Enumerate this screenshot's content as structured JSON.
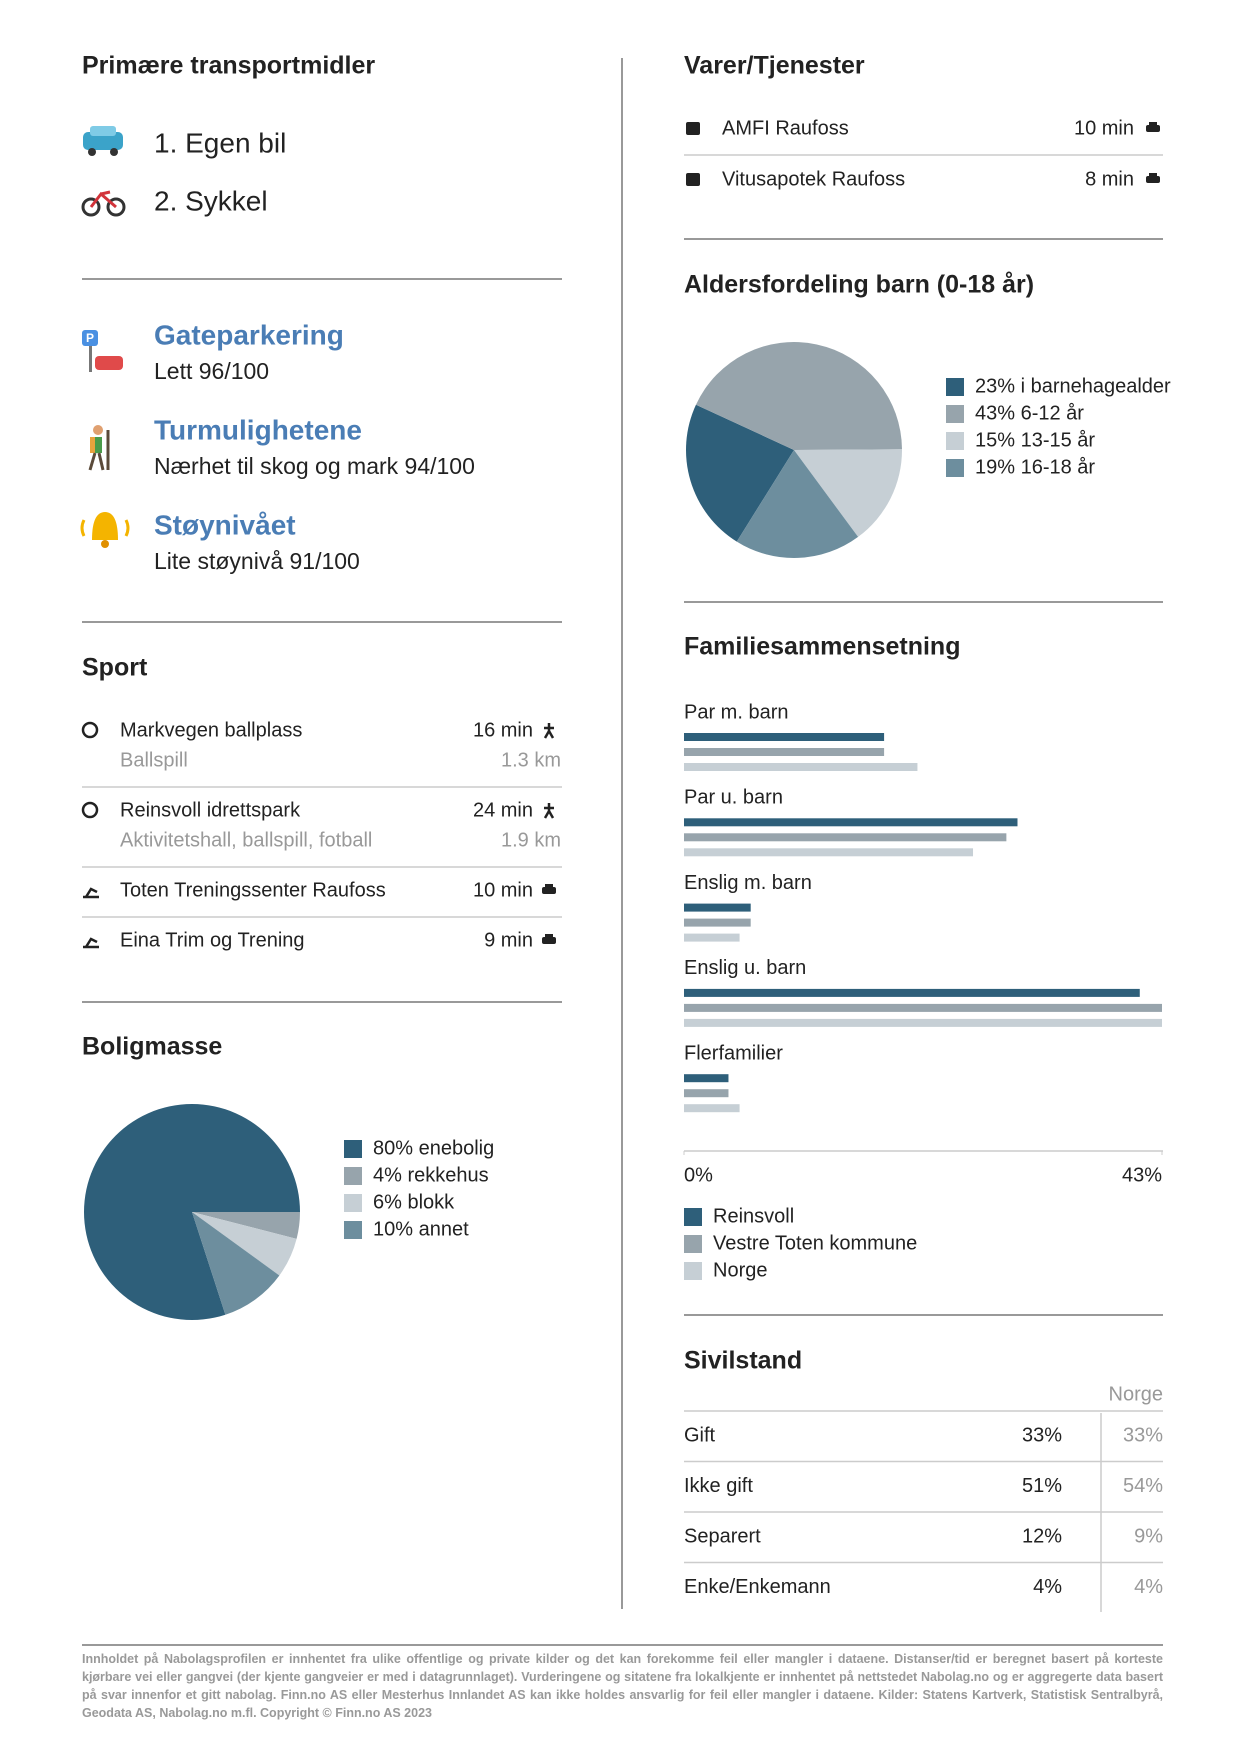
{
  "transport": {
    "title": "Primære transportmidler",
    "items": [
      "1. Egen bil",
      "2. Sykkel"
    ]
  },
  "scores": [
    {
      "title": "Gateparkering",
      "text": "Lett 96/100"
    },
    {
      "title": "Turmulighetene",
      "text": "Nærhet til skog og mark 94/100"
    },
    {
      "title": "Støynivået",
      "text": "Lite støynivå 91/100"
    }
  ],
  "sport": {
    "title": "Sport",
    "items": [
      {
        "name": "Markvegen ballplass",
        "sub": "Ballspill",
        "time": "16 min",
        "distance": "1.3 km"
      },
      {
        "name": "Reinsvoll idrettspark",
        "sub": "Aktivitetshall, ballspill, fotball",
        "time": "24 min",
        "distance": "1.9 km"
      },
      {
        "name": "Toten Treningssenter Raufoss",
        "time": "10 min"
      },
      {
        "name": "Eina Trim og Trening",
        "time": "9 min"
      }
    ]
  },
  "services": {
    "title": "Varer/Tjenester",
    "items": [
      {
        "name": "AMFI Raufoss",
        "time": "10 min"
      },
      {
        "name": "Vitusapotek Raufoss",
        "time": "8 min"
      }
    ]
  },
  "chart_data": [
    {
      "type": "pie",
      "title": "Boligmasse",
      "categories": [
        "80% enebolig",
        "4% rekkehus",
        "6% blokk",
        "10% annet"
      ],
      "values": [
        80,
        4,
        6,
        10
      ],
      "colors": [
        "#2e5f7a",
        "#97a4ac",
        "#c6cfd5",
        "#6d8e9e"
      ]
    },
    {
      "type": "pie",
      "title": "Aldersfordeling barn (0-18 år)",
      "categories": [
        "23% i barnehagealder",
        "43% 6-12 år",
        "15% 13-15 år",
        "19% 16-18 år"
      ],
      "values": [
        23,
        43,
        15,
        19
      ],
      "colors": [
        "#2e5f7a",
        "#97a4ac",
        "#c6cfd5",
        "#6d8e9e"
      ]
    },
    {
      "type": "bar",
      "title": "Familiesammensetning",
      "categories": [
        "Par m. barn",
        "Par u. barn",
        "Enslig m. barn",
        "Enslig u. barn",
        "Flerfamilier"
      ],
      "series": [
        {
          "name": "Reinsvoll",
          "color": "#2e5f7a",
          "values": [
            18,
            30,
            6,
            41,
            4
          ]
        },
        {
          "name": "Vestre Toten kommune",
          "color": "#97a4ac",
          "values": [
            18,
            29,
            6,
            43,
            4
          ]
        },
        {
          "name": "Norge",
          "color": "#c6cfd5",
          "values": [
            21,
            26,
            5,
            43,
            5
          ]
        }
      ],
      "xlim": [
        0,
        43
      ],
      "xticks": [
        {
          "value": 0,
          "label": "0%"
        },
        {
          "value": 43,
          "label": "43%"
        }
      ]
    }
  ],
  "sivilstand": {
    "title": "Sivilstand",
    "header": "Norge",
    "rows": [
      [
        "Gift",
        "33%",
        "33%"
      ],
      [
        "Ikke gift",
        "51%",
        "54%"
      ],
      [
        "Separert",
        "12%",
        "9%"
      ],
      [
        "Enke/Enkemann",
        "4%",
        "4%"
      ]
    ]
  },
  "footer": "Innholdet på Nabolagsprofilen er innhentet fra ulike offentlige og private kilder og det kan forekomme feil eller mangler i dataene. Distanser/tid er beregnet basert på korteste kjørbare vei eller gangvei (der kjente gangveier er med i datagrunnlaget). Vurderingene og sitatene fra lokalkjente er innhentet på nettstedet Nabolag.no og er aggregerte data basert på svar innenfor et gitt nabolag. Finn.no AS eller Mesterhus Innlandet AS kan ikke holdes ansvarlig for feil eller mangler i dataene. Kilder: Statens Kartverk, Statistisk Sentralbyrå, Geodata AS, Nabolag.no m.fl. Copyright © Finn.no AS 2023"
}
